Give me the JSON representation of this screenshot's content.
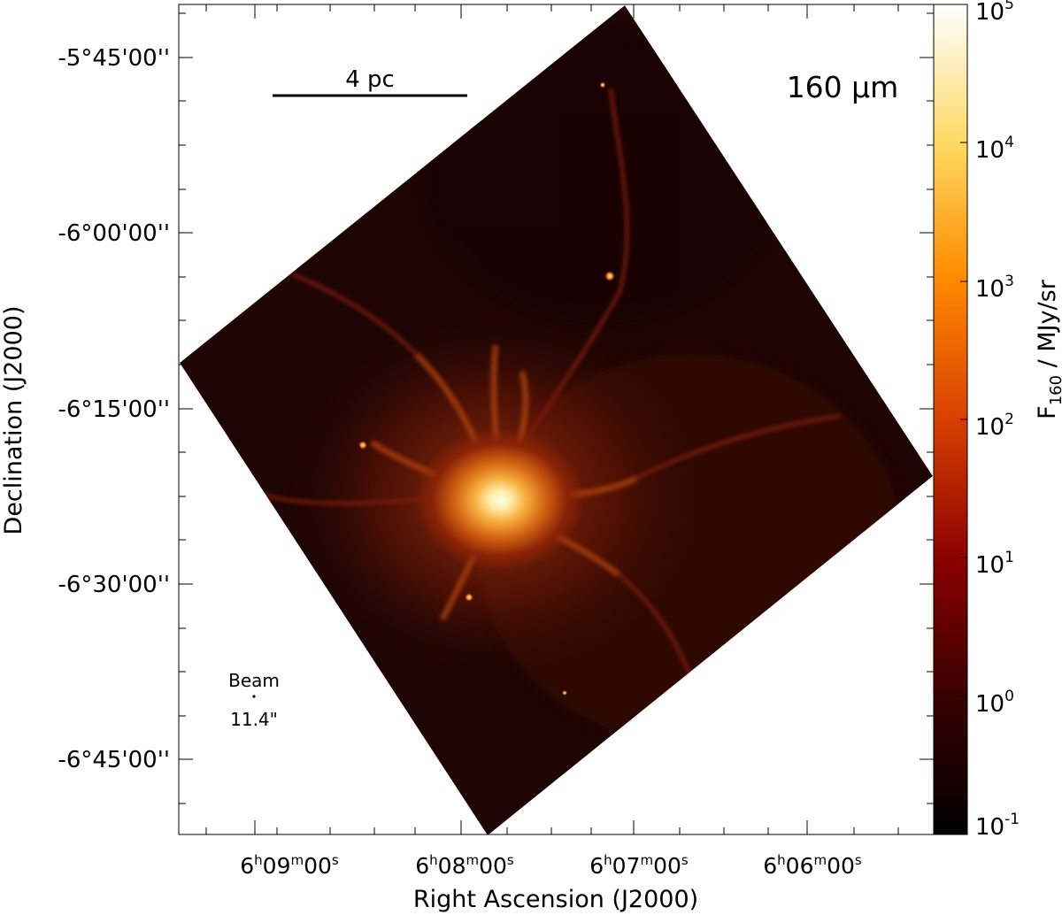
{
  "figure": {
    "band_label": "160 μm",
    "scalebar_label": "4 pc",
    "beam": {
      "title": "Beam",
      "size": "11.4\""
    },
    "xlabel": "Right Ascension (J2000)",
    "ylabel": "Declination (J2000)",
    "ra_ticks": [
      {
        "h": "6",
        "m": "09",
        "s": "00"
      },
      {
        "h": "6",
        "m": "08",
        "s": "00"
      },
      {
        "h": "6",
        "m": "07",
        "s": "00"
      },
      {
        "h": "6",
        "m": "06",
        "s": "00"
      }
    ],
    "dec_ticks": [
      "-5°45'00''",
      "-6°00'00''",
      "-6°15'00''",
      "-6°30'00''",
      "-6°45'00''"
    ],
    "colorbar": {
      "label_prefix": "F",
      "label_sub": "160",
      "label_suffix": " / MJy/sr",
      "ticks": [
        {
          "base": "10",
          "exp": "5"
        },
        {
          "base": "10",
          "exp": "4"
        },
        {
          "base": "10",
          "exp": "3"
        },
        {
          "base": "10",
          "exp": "2"
        },
        {
          "base": "10",
          "exp": "1"
        },
        {
          "base": "10",
          "exp": "0"
        },
        {
          "base": "10",
          "exp": "-1"
        }
      ],
      "log_range": [
        -1,
        5
      ],
      "colors": [
        "#000000",
        "#3a0000",
        "#8b0000",
        "#d84000",
        "#ff8a00",
        "#ffd860",
        "#ffffff"
      ]
    },
    "image_colors": {
      "background": "#1e0503",
      "mid": "#7a1a05",
      "bright": "#e8801a",
      "peak": "#fffbe8"
    }
  }
}
